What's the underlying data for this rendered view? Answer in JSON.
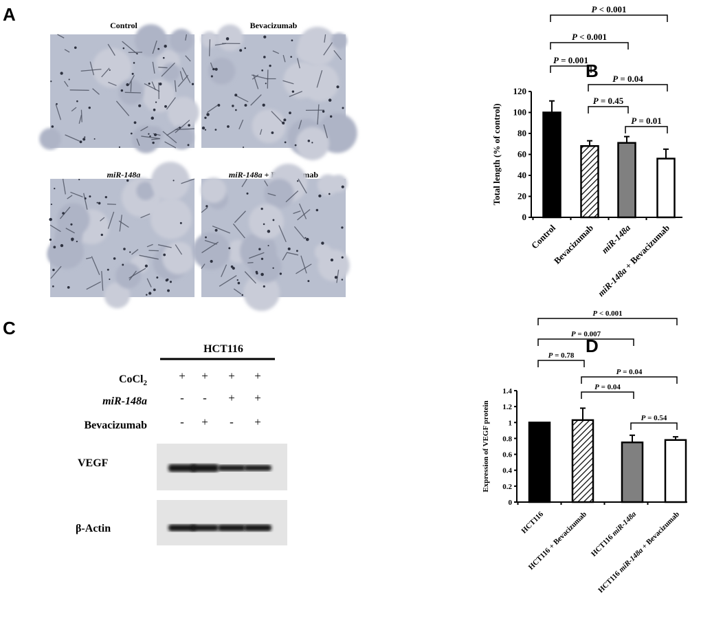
{
  "panels": {
    "A": {
      "letter": "A",
      "images": [
        {
          "label": "Control"
        },
        {
          "label": "Bevacizumab"
        },
        {
          "label_italic": "miR-148a",
          "label_rest": ""
        },
        {
          "label_italic": "miR-148a",
          "label_rest": " + Bevacizumab"
        }
      ]
    },
    "B": {
      "letter": "B"
    },
    "C": {
      "letter": "C",
      "cell_line": "HCT116",
      "rows": [
        {
          "label": "CoCl",
          "sub": "2",
          "signs": [
            "+",
            "+",
            "+",
            "+"
          ]
        },
        {
          "label": "miR-148a",
          "italic": true,
          "signs": [
            "-",
            "-",
            "+",
            "+"
          ]
        },
        {
          "label": "Bevacizumab",
          "signs": [
            "-",
            "+",
            "-",
            "+"
          ]
        }
      ],
      "blots": [
        {
          "label": "VEGF"
        },
        {
          "label": "β-Actin"
        }
      ]
    },
    "D": {
      "letter": "D"
    }
  },
  "chart_data": [
    {
      "type": "bar",
      "panel": "B",
      "ylabel": "Total length (% of control)",
      "ylim": [
        0,
        120
      ],
      "yticks": [
        0,
        20,
        40,
        60,
        80,
        100,
        120
      ],
      "categories": [
        "Control",
        "Bevacizumab",
        "miR-148a",
        "miR-148a + Bevacizumab"
      ],
      "values": [
        100,
        68,
        71,
        56
      ],
      "errors": [
        11,
        5,
        6,
        9
      ],
      "fills": [
        "solid-black",
        "hatched",
        "solid-gray",
        "white"
      ],
      "colors": {
        "black": "#000000",
        "gray": "#808080",
        "white": "#ffffff"
      },
      "comparisons": [
        {
          "from": 0,
          "to": 3,
          "label": "P < 0.001"
        },
        {
          "from": 0,
          "to": 2,
          "label": "P < 0.001"
        },
        {
          "from": 0,
          "to": 1,
          "label": "P = 0.001"
        },
        {
          "from": 1,
          "to": 3,
          "label": "P = 0.04"
        },
        {
          "from": 1,
          "to": 2,
          "label": "P = 0.45"
        },
        {
          "from": 2,
          "to": 3,
          "label": "P = 0.01"
        }
      ]
    },
    {
      "type": "bar",
      "panel": "D",
      "ylabel": "Expression of VEGF protein",
      "ylim": [
        0,
        1.4
      ],
      "yticks": [
        "0",
        "0.2",
        "0.4",
        "0.6",
        "0.8",
        "1",
        "1.2",
        "1.4"
      ],
      "categories": [
        "HCT116",
        "HCT116 + Bevacizumab",
        "HCT116 miR-148a",
        "HCT116 miR-148a + Bevacizumab"
      ],
      "values": [
        1.0,
        1.03,
        0.75,
        0.78
      ],
      "errors": [
        0,
        0.15,
        0.09,
        0.04
      ],
      "fills": [
        "solid-black",
        "hatched",
        "solid-gray",
        "white"
      ],
      "comparisons": [
        {
          "from": 0,
          "to": 3,
          "label": "P < 0.001"
        },
        {
          "from": 0,
          "to": 2,
          "label": "P = 0.007"
        },
        {
          "from": 0,
          "to": 1,
          "label": "P = 0.78"
        },
        {
          "from": 1,
          "to": 3,
          "label": "P = 0.04"
        },
        {
          "from": 1,
          "to": 2,
          "label": "P = 0.04"
        },
        {
          "from": 2,
          "to": 3,
          "label": "P = 0.54"
        }
      ]
    }
  ]
}
